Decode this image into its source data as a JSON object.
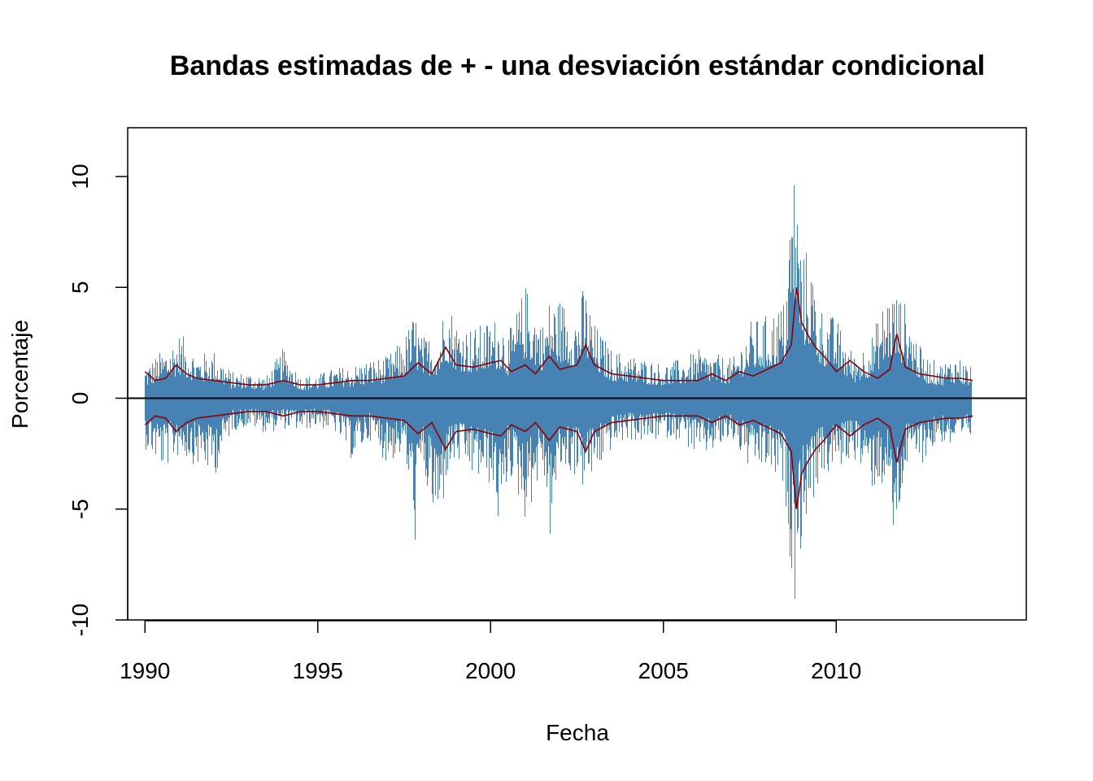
{
  "chart_data": {
    "type": "line",
    "title": "Bandas estimadas de + - una desviación estándar condicional",
    "xlabel": "Fecha",
    "ylabel": "Porcentaje",
    "xlim": [
      1989.5,
      2015.5
    ],
    "ylim": [
      -10,
      12.2
    ],
    "x_ticks": [
      1990,
      1995,
      2000,
      2005,
      2010
    ],
    "x_tick_labels": [
      "1990",
      "1995",
      "2000",
      "2005",
      "2010"
    ],
    "y_ticks": [
      -10,
      -5,
      0,
      5,
      10
    ],
    "y_tick_labels": [
      "-10",
      "-5",
      "0",
      "5",
      "10"
    ],
    "grid": false,
    "reference_line": 0,
    "colors": {
      "returns": "#4682B4",
      "bands": "#8B0000",
      "zero_line": "#000000"
    },
    "series": [
      {
        "style": "bars",
        "x": [
          1990.0,
          1990.5,
          1991.0,
          1991.5,
          1992.0,
          1992.5,
          1993.0,
          1993.5,
          1994.0,
          1994.5,
          1995.0,
          1995.5,
          1996.0,
          1996.5,
          1997.0,
          1997.5,
          1997.8,
          1998.0,
          1998.5,
          1998.7,
          1999.0,
          1999.5,
          2000.0,
          2000.3,
          2000.5,
          2001.0,
          2001.5,
          2001.7,
          2002.0,
          2002.5,
          2002.7,
          2003.0,
          2003.5,
          2004.0,
          2004.5,
          2005.0,
          2005.5,
          2006.0,
          2006.5,
          2007.0,
          2007.5,
          2008.0,
          2008.5,
          2008.75,
          2008.85,
          2009.0,
          2009.2,
          2009.5,
          2010.0,
          2010.5,
          2011.0,
          2011.5,
          2011.65,
          2012.0,
          2012.5,
          2013.0,
          2013.5,
          2013.9
        ],
        "high": [
          1.5,
          2.2,
          3.0,
          2.0,
          2.2,
          1.2,
          1.2,
          1.0,
          2.3,
          1.0,
          1.1,
          1.4,
          1.5,
          1.8,
          1.9,
          2.8,
          4.0,
          2.8,
          3.0,
          4.8,
          3.6,
          3.2,
          3.6,
          3.8,
          2.9,
          5.2,
          3.5,
          4.6,
          4.6,
          4.0,
          5.3,
          3.4,
          2.2,
          2.0,
          1.8,
          1.6,
          1.8,
          2.2,
          2.0,
          1.8,
          3.5,
          3.8,
          4.5,
          11.3,
          9.8,
          6.6,
          6.9,
          4.3,
          3.6,
          2.0,
          2.8,
          5.0,
          5.1,
          4.3,
          2.0,
          1.6,
          2.0,
          1.4
        ],
        "low": [
          -2.3,
          -3.3,
          -2.6,
          -3.1,
          -3.6,
          -1.5,
          -1.3,
          -1.6,
          -1.4,
          -1.5,
          -1.3,
          -1.6,
          -2.9,
          -1.9,
          -3.0,
          -2.5,
          -6.7,
          -3.4,
          -6.7,
          -3.8,
          -3.0,
          -3.7,
          -4.0,
          -6.6,
          -3.3,
          -5.6,
          -3.3,
          -6.6,
          -3.4,
          -3.6,
          -4.3,
          -3.6,
          -2.3,
          -1.9,
          -2.1,
          -1.8,
          -1.9,
          -2.8,
          -2.4,
          -2.0,
          -3.4,
          -3.3,
          -4.4,
          -9.0,
          -9.2,
          -6.2,
          -5.3,
          -3.8,
          -3.3,
          -2.7,
          -4.2,
          -4.0,
          -7.2,
          -3.3,
          -2.9,
          -2.0,
          -2.5,
          -1.9
        ]
      },
      {
        "style": "line",
        "x": [
          1990.0,
          1990.3,
          1990.6,
          1990.9,
          1991.2,
          1991.5,
          1992.0,
          1992.5,
          1993.0,
          1993.5,
          1994.0,
          1994.5,
          1995.0,
          1995.5,
          1996.0,
          1996.5,
          1997.0,
          1997.5,
          1997.9,
          1998.3,
          1998.7,
          1999.0,
          1999.5,
          2000.0,
          2000.3,
          2000.6,
          2001.0,
          2001.3,
          2001.7,
          2002.0,
          2002.5,
          2002.75,
          2003.0,
          2003.5,
          2004.0,
          2004.5,
          2005.0,
          2005.5,
          2006.0,
          2006.4,
          2006.8,
          2007.2,
          2007.6,
          2008.0,
          2008.4,
          2008.7,
          2008.85,
          2009.0,
          2009.2,
          2009.4,
          2009.7,
          2010.0,
          2010.4,
          2010.8,
          2011.2,
          2011.55,
          2011.75,
          2012.0,
          2012.4,
          2012.8,
          2013.2,
          2013.6,
          2013.95
        ],
        "values": [
          1.2,
          0.8,
          0.9,
          1.5,
          1.1,
          0.9,
          0.8,
          0.7,
          0.6,
          0.6,
          0.8,
          0.6,
          0.6,
          0.7,
          0.8,
          0.8,
          0.9,
          1.0,
          1.6,
          1.1,
          2.3,
          1.5,
          1.4,
          1.6,
          1.7,
          1.2,
          1.5,
          1.1,
          1.9,
          1.3,
          1.5,
          2.4,
          1.5,
          1.1,
          1.0,
          0.9,
          0.8,
          0.8,
          0.8,
          1.1,
          0.8,
          1.2,
          1.0,
          1.3,
          1.6,
          2.4,
          5.0,
          3.4,
          2.8,
          2.3,
          1.8,
          1.2,
          1.7,
          1.2,
          0.9,
          1.3,
          2.9,
          1.4,
          1.1,
          1.0,
          0.9,
          0.9,
          0.8
        ]
      },
      {
        "style": "line",
        "x": [
          1990.0,
          1990.3,
          1990.6,
          1990.9,
          1991.2,
          1991.5,
          1992.0,
          1992.5,
          1993.0,
          1993.5,
          1994.0,
          1994.5,
          1995.0,
          1995.5,
          1996.0,
          1996.5,
          1997.0,
          1997.5,
          1997.9,
          1998.3,
          1998.7,
          1999.0,
          1999.5,
          2000.0,
          2000.3,
          2000.6,
          2001.0,
          2001.3,
          2001.7,
          2002.0,
          2002.5,
          2002.75,
          2003.0,
          2003.5,
          2004.0,
          2004.5,
          2005.0,
          2005.5,
          2006.0,
          2006.4,
          2006.8,
          2007.2,
          2007.6,
          2008.0,
          2008.4,
          2008.7,
          2008.85,
          2009.0,
          2009.2,
          2009.4,
          2009.7,
          2010.0,
          2010.4,
          2010.8,
          2011.2,
          2011.55,
          2011.75,
          2012.0,
          2012.4,
          2012.8,
          2013.2,
          2013.6,
          2013.95
        ],
        "values": [
          -1.2,
          -0.8,
          -0.9,
          -1.5,
          -1.1,
          -0.9,
          -0.8,
          -0.7,
          -0.6,
          -0.6,
          -0.8,
          -0.6,
          -0.6,
          -0.7,
          -0.8,
          -0.8,
          -0.9,
          -1.0,
          -1.6,
          -1.1,
          -2.3,
          -1.5,
          -1.4,
          -1.6,
          -1.7,
          -1.2,
          -1.5,
          -1.1,
          -1.9,
          -1.3,
          -1.5,
          -2.4,
          -1.5,
          -1.1,
          -1.0,
          -0.9,
          -0.8,
          -0.8,
          -0.8,
          -1.1,
          -0.8,
          -1.2,
          -1.0,
          -1.3,
          -1.6,
          -2.4,
          -5.0,
          -3.4,
          -2.8,
          -2.3,
          -1.8,
          -1.2,
          -1.7,
          -1.2,
          -0.9,
          -1.3,
          -2.9,
          -1.4,
          -1.1,
          -1.0,
          -0.9,
          -0.9,
          -0.8
        ]
      }
    ]
  }
}
